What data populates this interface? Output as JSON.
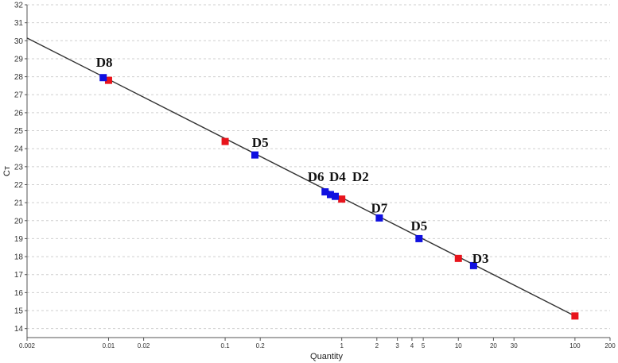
{
  "chart_data": {
    "type": "scatter",
    "title": "",
    "xlabel": "Quantity",
    "ylabel": "Cт",
    "xscale": "log",
    "xlim": [
      0.002,
      200
    ],
    "ylim": [
      13.5,
      32
    ],
    "grid": "horizontal dashed",
    "x_ticks": [
      {
        "value": 0.002,
        "label": "0.002"
      },
      {
        "value": 0.01,
        "label": "0.01"
      },
      {
        "value": 0.02,
        "label": "0.02"
      },
      {
        "value": 0.1,
        "label": "0.1"
      },
      {
        "value": 0.2,
        "label": "0.2"
      },
      {
        "value": 1,
        "label": "1"
      },
      {
        "value": 2,
        "label": "2"
      },
      {
        "value": 3,
        "label": "3"
      },
      {
        "value": 4,
        "label": "4"
      },
      {
        "value": 5,
        "label": "5"
      },
      {
        "value": 10,
        "label": "10"
      },
      {
        "value": 20,
        "label": "20"
      },
      {
        "value": 30,
        "label": "30"
      },
      {
        "value": 100,
        "label": "100"
      },
      {
        "value": 200,
        "label": "200"
      }
    ],
    "y_ticks": [
      14,
      15,
      16,
      17,
      18,
      19,
      20,
      21,
      22,
      23,
      24,
      25,
      26,
      27,
      28,
      29,
      30,
      31,
      32
    ],
    "fit_line": {
      "color": "#333333",
      "points": [
        [
          0.002,
          30.15
        ],
        [
          100,
          14.7
        ]
      ]
    },
    "series": [
      {
        "color": "#e8141c",
        "points": [
          {
            "x": 0.01,
            "y": 27.8
          },
          {
            "x": 0.1,
            "y": 24.4
          },
          {
            "x": 1,
            "y": 21.2
          },
          {
            "x": 10,
            "y": 17.9
          },
          {
            "x": 100,
            "y": 14.7
          }
        ]
      },
      {
        "color": "#1010e0",
        "points": [
          {
            "x": 0.009,
            "y": 27.95
          },
          {
            "x": 0.18,
            "y": 23.65
          },
          {
            "x": 0.72,
            "y": 21.6
          },
          {
            "x": 0.8,
            "y": 21.45
          },
          {
            "x": 0.88,
            "y": 21.35
          },
          {
            "x": 2.1,
            "y": 20.15
          },
          {
            "x": 4.6,
            "y": 19.0
          },
          {
            "x": 13.5,
            "y": 17.5
          }
        ]
      }
    ],
    "annotations": [
      {
        "text": "D8",
        "x": 0.0092,
        "y": 28.55
      },
      {
        "text": "D5",
        "x": 0.2,
        "y": 24.1
      },
      {
        "text": "D6",
        "x": 0.6,
        "y": 22.2
      },
      {
        "text": "D4",
        "x": 0.92,
        "y": 22.2
      },
      {
        "text": "D2",
        "x": 1.45,
        "y": 22.2
      },
      {
        "text": "D7",
        "x": 2.1,
        "y": 20.45
      },
      {
        "text": "D5",
        "x": 4.6,
        "y": 19.45
      },
      {
        "text": "D3",
        "x": 15.5,
        "y": 17.65
      }
    ]
  }
}
